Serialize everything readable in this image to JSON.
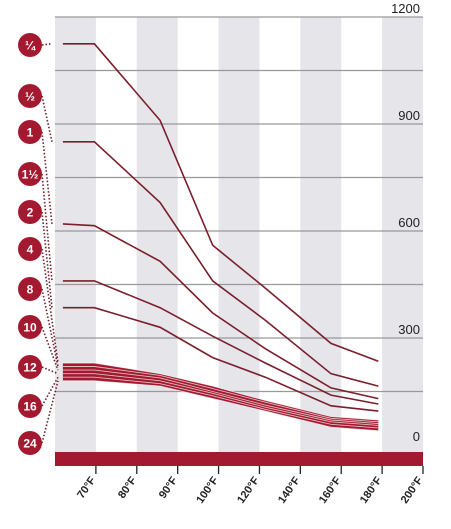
{
  "colors": {
    "accent": "#a3192f",
    "line": "#7a1f2b",
    "grid": "#999999",
    "band": "#e5e5ea",
    "badge_link": "#6e1d28"
  },
  "chart_data": {
    "type": "line",
    "categories": [
      "70°F",
      "80°F",
      "90°F",
      "100°F",
      "120°F",
      "140°F",
      "160°F",
      "180°F",
      "200°F"
    ],
    "xlabel": "",
    "ylabel": "",
    "ylim": [
      0,
      1200
    ],
    "yticks": [
      0,
      300,
      600,
      900,
      1200
    ],
    "ytick_labels": [
      "0",
      "300",
      "600",
      "900",
      "1200"
    ],
    "grid": true,
    "x": [
      63,
      75,
      100,
      120,
      140,
      165,
      183
    ],
    "series": [
      {
        "name": "¼",
        "values": [
          1125,
          1125,
          910,
          560,
          440,
          285,
          235
        ]
      },
      {
        "name": "½",
        "values": [
          850,
          850,
          680,
          460,
          350,
          200,
          165
        ]
      },
      {
        "name": "1",
        "values": [
          620,
          615,
          515,
          370,
          270,
          160,
          130
        ]
      },
      {
        "name": "1½",
        "values": [
          460,
          460,
          385,
          305,
          230,
          140,
          115
        ]
      },
      {
        "name": "2",
        "values": [
          385,
          385,
          330,
          245,
          190,
          110,
          95
        ]
      },
      {
        "name": "4",
        "values": [
          230,
          230,
          200,
          165,
          125,
          80,
          70
        ]
      },
      {
        "name": "8",
        "values": [
          220,
          220,
          195,
          158,
          120,
          75,
          65
        ]
      },
      {
        "name": "10",
        "values": [
          210,
          210,
          188,
          150,
          112,
          70,
          60
        ]
      },
      {
        "name": "12",
        "values": [
          200,
          200,
          180,
          145,
          106,
          65,
          55
        ]
      },
      {
        "name": "16",
        "values": [
          190,
          190,
          172,
          138,
          100,
          58,
          48
        ]
      },
      {
        "name": "24",
        "values": [
          180,
          180,
          165,
          130,
          95,
          50,
          40
        ]
      }
    ]
  }
}
